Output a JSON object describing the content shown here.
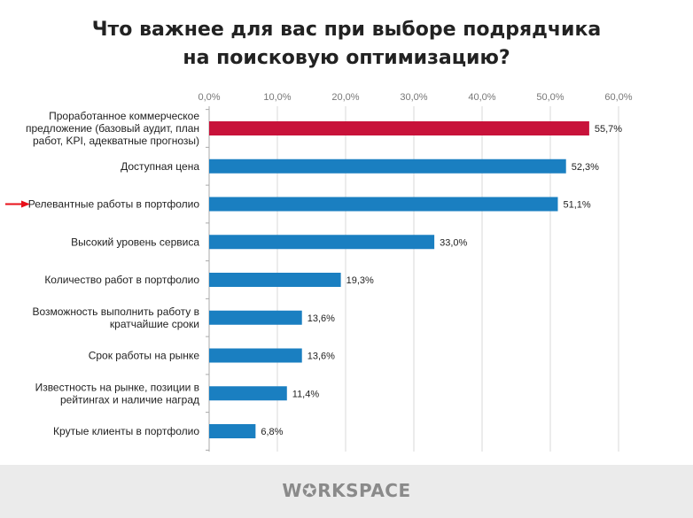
{
  "title_lines": [
    "Что важнее для вас при выборе подрядчика",
    "на поисковую оптимизацию?"
  ],
  "chart_data": {
    "type": "bar",
    "orientation": "horizontal",
    "title": "Что важнее для вас при выборе подрядчика на поисковую оптимизацию?",
    "categories": [
      [
        "Проработанное коммерческое",
        "предложение (базовый аудит, план",
        "работ, KPI, адекватные прогнозы)"
      ],
      [
        "Доступная цена"
      ],
      [
        "Релевантные работы в портфолио"
      ],
      [
        "Высокий уровень сервиса"
      ],
      [
        "Количество работ в портфолио"
      ],
      [
        "Возможность выполнить работу в",
        "кратчайшие сроки"
      ],
      [
        "Срок работы на рынке"
      ],
      [
        "Известность на рынке, позиции в",
        "рейтингах и наличие наград"
      ],
      [
        "Крутые клиенты в портфолио"
      ]
    ],
    "values": [
      55.7,
      52.3,
      51.1,
      33.0,
      19.3,
      13.6,
      13.6,
      11.4,
      6.8
    ],
    "value_labels": [
      "55,7%",
      "52,3%",
      "51,1%",
      "33,0%",
      "19,3%",
      "13,6%",
      "13,6%",
      "11,4%",
      "6,8%"
    ],
    "xlim": [
      0,
      60
    ],
    "ticks": [
      "0,0%",
      "10,0%",
      "20,0%",
      "30,0%",
      "40,0%",
      "50,0%",
      "60,0%"
    ],
    "axis_position": "top",
    "grid": true,
    "colors": {
      "default": "#1a7fc1",
      "highlight": "#c8123a",
      "arrow": "#e8101a"
    },
    "highlighted_index": 0,
    "arrow_index": 2
  },
  "footer": {
    "logo": "WORKSPACE"
  }
}
